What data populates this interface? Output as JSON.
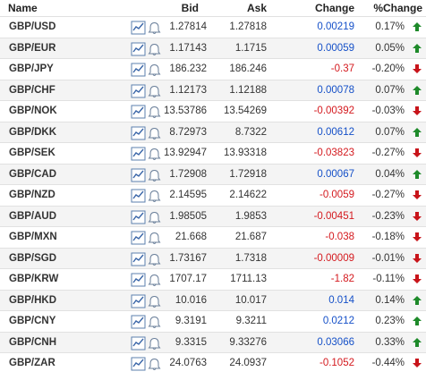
{
  "header": {
    "name": "Name",
    "bid": "Bid",
    "ask": "Ask",
    "change": "Change",
    "pct_change": "%Change"
  },
  "rows": [
    {
      "pair": "GBP/USD",
      "bid": "1.27814",
      "ask": "1.27818",
      "change": "0.00219",
      "pct": "0.17%",
      "dir": "up"
    },
    {
      "pair": "GBP/EUR",
      "bid": "1.17143",
      "ask": "1.1715",
      "change": "0.00059",
      "pct": "0.05%",
      "dir": "up"
    },
    {
      "pair": "GBP/JPY",
      "bid": "186.232",
      "ask": "186.246",
      "change": "-0.37",
      "pct": "-0.20%",
      "dir": "down"
    },
    {
      "pair": "GBP/CHF",
      "bid": "1.12173",
      "ask": "1.12188",
      "change": "0.00078",
      "pct": "0.07%",
      "dir": "up"
    },
    {
      "pair": "GBP/NOK",
      "bid": "13.53786",
      "ask": "13.54269",
      "change": "-0.00392",
      "pct": "-0.03%",
      "dir": "down"
    },
    {
      "pair": "GBP/DKK",
      "bid": "8.72973",
      "ask": "8.7322",
      "change": "0.00612",
      "pct": "0.07%",
      "dir": "up"
    },
    {
      "pair": "GBP/SEK",
      "bid": "13.92947",
      "ask": "13.93318",
      "change": "-0.03823",
      "pct": "-0.27%",
      "dir": "down"
    },
    {
      "pair": "GBP/CAD",
      "bid": "1.72908",
      "ask": "1.72918",
      "change": "0.00067",
      "pct": "0.04%",
      "dir": "up"
    },
    {
      "pair": "GBP/NZD",
      "bid": "2.14595",
      "ask": "2.14622",
      "change": "-0.0059",
      "pct": "-0.27%",
      "dir": "down"
    },
    {
      "pair": "GBP/AUD",
      "bid": "1.98505",
      "ask": "1.9853",
      "change": "-0.00451",
      "pct": "-0.23%",
      "dir": "down"
    },
    {
      "pair": "GBP/MXN",
      "bid": "21.668",
      "ask": "21.687",
      "change": "-0.038",
      "pct": "-0.18%",
      "dir": "down"
    },
    {
      "pair": "GBP/SGD",
      "bid": "1.73167",
      "ask": "1.7318",
      "change": "-0.00009",
      "pct": "-0.01%",
      "dir": "down"
    },
    {
      "pair": "GBP/KRW",
      "bid": "1707.17",
      "ask": "1711.13",
      "change": "-1.82",
      "pct": "-0.11%",
      "dir": "down"
    },
    {
      "pair": "GBP/HKD",
      "bid": "10.016",
      "ask": "10.017",
      "change": "0.014",
      "pct": "0.14%",
      "dir": "up"
    },
    {
      "pair": "GBP/CNY",
      "bid": "9.3191",
      "ask": "9.3211",
      "change": "0.0212",
      "pct": "0.23%",
      "dir": "up"
    },
    {
      "pair": "GBP/CNH",
      "bid": "9.3315",
      "ask": "9.33276",
      "change": "0.03066",
      "pct": "0.33%",
      "dir": "up"
    },
    {
      "pair": "GBP/ZAR",
      "bid": "24.0763",
      "ask": "24.0937",
      "change": "-0.1052",
      "pct": "-0.44%",
      "dir": "down"
    }
  ],
  "icons": {
    "chart": "chart-icon",
    "alert": "bell-icon",
    "up": "arrow-up-icon",
    "down": "arrow-down-icon"
  },
  "colors": {
    "positive_change": "#1550c8",
    "negative_change": "#d4191e",
    "up_arrow": "#1e8a2a",
    "down_arrow": "#c8141a",
    "alt_row": "#f4f4f4"
  }
}
